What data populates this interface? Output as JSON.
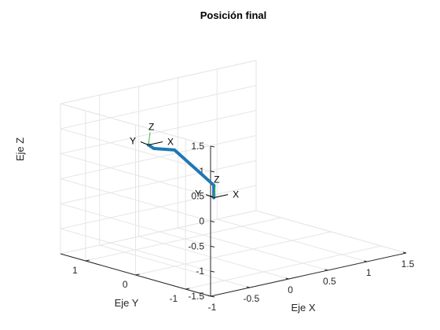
{
  "chart_data": {
    "type": "line3d",
    "title": "Posición final",
    "xlabel": "Eje X",
    "ylabel": "Eje Y",
    "zlabel": "Eje Z",
    "xlim": [
      -1,
      1.5
    ],
    "ylim": [
      -1.5,
      1.5
    ],
    "zlim": [
      -1.5,
      1.5
    ],
    "xticks": [
      -1,
      -0.5,
      0,
      0.5,
      1,
      1.5
    ],
    "xtick_labels": [
      "-1",
      "-0.5",
      "0",
      "0.5",
      "1",
      "1.5"
    ],
    "yticks": [
      -1,
      0,
      1
    ],
    "ytick_labels": [
      "-1",
      "0",
      "1"
    ],
    "zticks": [
      -1.5,
      -1,
      -0.5,
      0,
      0.5,
      1,
      1.5
    ],
    "ztick_labels": [
      "-1.5",
      "-1",
      "-0.5",
      "0",
      "0.5",
      "1",
      "1.5"
    ],
    "grid": true,
    "colors": {
      "link": "#1f77b4",
      "frame": "#000000",
      "frame_accent": "#3cb44b",
      "grid": "#e6e6e6",
      "axes": "#262626"
    },
    "series": [
      {
        "points": [
          {
            "x": 0,
            "y": 0,
            "z": -0.3
          },
          {
            "x": 0,
            "y": 0,
            "z": -0.05
          },
          {
            "x": -0.15,
            "y": 0.55,
            "z": 0.55
          },
          {
            "x": -0.35,
            "y": 0.65,
            "z": 0.62
          },
          {
            "x": -0.4,
            "y": 0.68,
            "z": 0.7
          }
        ]
      }
    ],
    "frames": [
      {
        "x": 0,
        "y": 0,
        "z": -0.3,
        "labels": [
          "X",
          "Y",
          "Z"
        ]
      },
      {
        "x": -0.4,
        "y": 0.68,
        "z": 0.7,
        "labels": [
          "X",
          "Y",
          "Z"
        ]
      }
    ]
  }
}
